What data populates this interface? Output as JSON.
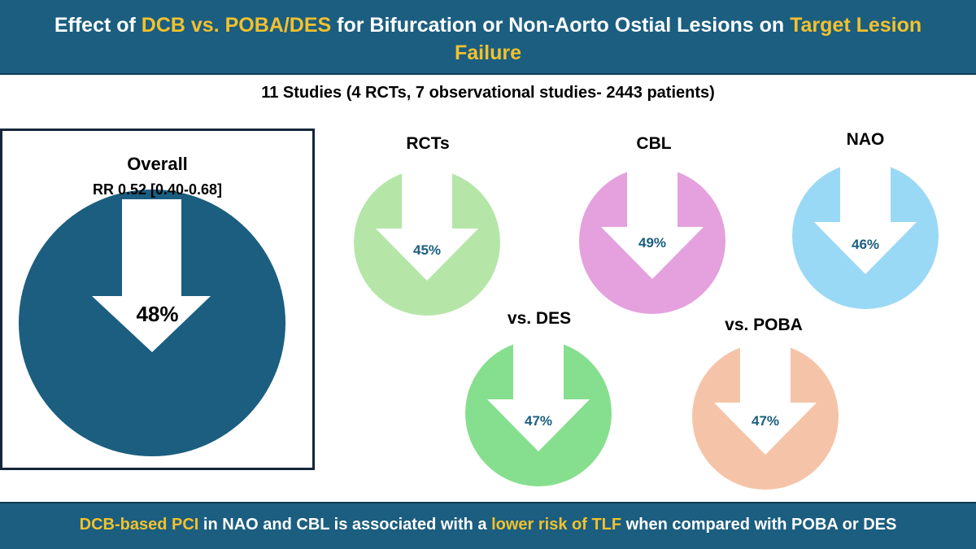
{
  "header": {
    "title_parts": {
      "p1": "Effect of ",
      "p2": "DCB vs. POBA/DES",
      "p3": " for Bifurcation or Non-Aorto Ostial Lesions on ",
      "p4": "Target Lesion Failure"
    }
  },
  "subtitle": "11 Studies (4 RCTs, 7 observational studies- 2443 patients)",
  "overall": {
    "title": "Overall",
    "rr": "RR 0.52 [0.40-0.68]",
    "percent": "48%",
    "color": "#1b5e80"
  },
  "subgroups": [
    {
      "title": "RCTs",
      "percent": "45%",
      "color": "#b5e6a8"
    },
    {
      "title": "CBL",
      "percent": "49%",
      "color": "#e4a1dd"
    },
    {
      "title": "NAO",
      "percent": "46%",
      "color": "#9ad9f5"
    },
    {
      "title": "vs. DES",
      "percent": "47%",
      "color": "#86df8e"
    },
    {
      "title": "vs. POBA",
      "percent": "47%",
      "color": "#f5c4a8"
    }
  ],
  "footer": {
    "p1": "DCB-based PCI",
    "p2": " in NAO and CBL is associated with a ",
    "p3": "lower risk of TLF",
    "p4": " when compared with POBA or DES"
  },
  "colors": {
    "header_bg": "#1b5e80",
    "highlight": "#f2c12e",
    "percent_text": "#1b5e80"
  }
}
